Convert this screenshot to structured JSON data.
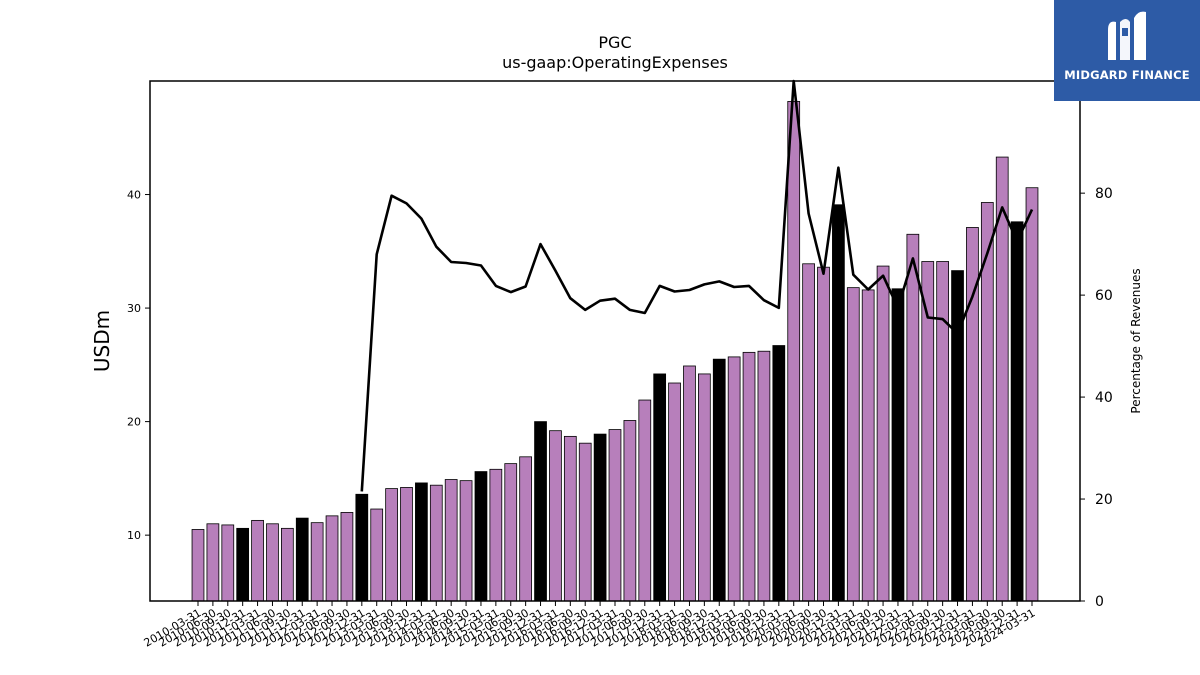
{
  "brand": {
    "name": "MIDGARD FINANCE",
    "color": "#2d5ba6"
  },
  "chart_data": {
    "type": "bar",
    "title": "PGC",
    "subtitle": "us-gaap:OperatingExpenses",
    "ylabel": "USDm",
    "y2label": "Percentage of Revenues",
    "ylim": [
      4.2,
      50
    ],
    "y2lim": [
      0,
      102
    ],
    "yticks": [
      10,
      20,
      30,
      40
    ],
    "y2ticks": [
      0,
      20,
      40,
      60,
      80
    ],
    "colors": {
      "quarter": "#b77fbb",
      "annual": "#000000",
      "line": "#000000"
    },
    "categories": [
      "2010-03-31",
      "2010-06-30",
      "2010-09-30",
      "2010-12-31",
      "2011-03-31",
      "2011-06-30",
      "2011-09-30",
      "2011-12-31",
      "2012-03-31",
      "2012-06-30",
      "2012-09-30",
      "2012-12-31",
      "2013-03-31",
      "2013-06-30",
      "2013-09-30",
      "2013-12-31",
      "2014-03-31",
      "2014-06-30",
      "2014-09-30",
      "2014-12-31",
      "2015-03-31",
      "2015-06-30",
      "2015-09-30",
      "2015-12-31",
      "2016-03-31",
      "2016-06-30",
      "2016-09-30",
      "2016-12-31",
      "2017-03-31",
      "2017-06-30",
      "2017-09-30",
      "2017-12-31",
      "2018-03-31",
      "2018-06-30",
      "2018-09-30",
      "2018-12-31",
      "2019-03-31",
      "2019-06-30",
      "2019-09-30",
      "2019-12-31",
      "2020-03-31",
      "2020-06-30",
      "2020-09-30",
      "2020-12-31",
      "2021-03-31",
      "2021-06-30",
      "2021-09-30",
      "2021-12-31",
      "2022-03-31",
      "2022-06-30",
      "2022-09-30",
      "2022-12-31",
      "2023-03-31",
      "2023-06-30",
      "2023-09-30",
      "2023-12-31",
      "2024-03-31"
    ],
    "values": [
      10.5,
      11.0,
      10.9,
      10.6,
      11.3,
      11.0,
      10.6,
      11.5,
      11.1,
      11.7,
      12.0,
      13.6,
      12.3,
      14.1,
      14.2,
      14.6,
      14.4,
      14.9,
      14.8,
      15.6,
      15.8,
      16.3,
      16.9,
      20.0,
      19.2,
      18.7,
      18.1,
      18.9,
      19.3,
      20.1,
      21.9,
      24.2,
      23.4,
      24.9,
      24.2,
      25.5,
      25.7,
      26.1,
      26.2,
      26.7,
      48.2,
      33.9,
      33.6,
      39.1,
      31.8,
      31.6,
      33.7,
      31.7,
      36.5,
      34.1,
      34.1,
      33.3,
      37.1,
      39.3,
      43.3,
      37.6,
      40.6
    ],
    "annual_flags": [
      false,
      false,
      false,
      true,
      false,
      false,
      false,
      true,
      false,
      false,
      false,
      true,
      false,
      false,
      false,
      true,
      false,
      false,
      false,
      true,
      false,
      false,
      false,
      true,
      false,
      false,
      false,
      true,
      false,
      false,
      false,
      true,
      false,
      false,
      false,
      true,
      false,
      false,
      false,
      true,
      false,
      false,
      false,
      true,
      false,
      false,
      false,
      true,
      false,
      false,
      false,
      true,
      false,
      false,
      false,
      true,
      false
    ],
    "pct_of_revenues": [
      null,
      null,
      null,
      null,
      null,
      null,
      null,
      null,
      null,
      null,
      null,
      21.5,
      68,
      79.5,
      78,
      75,
      69.5,
      66.5,
      66.3,
      65.8,
      61.8,
      60.6,
      61.7,
      70,
      64.8,
      59.4,
      57.1,
      58.9,
      59.3,
      57.1,
      56.5,
      61.8,
      60.7,
      61,
      62.1,
      62.7,
      61.6,
      61.8,
      59,
      57.5,
      102,
      76,
      64.2,
      85,
      64,
      61.1,
      63.8,
      57.5,
      67.2,
      55.6,
      55.3,
      52.5,
      59.7,
      68.2,
      77.2,
      70.5,
      76.8
    ]
  }
}
